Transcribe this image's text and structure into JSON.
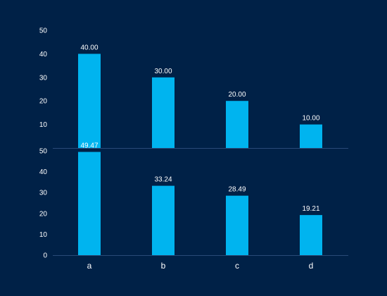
{
  "colors": {
    "background": "#002147",
    "bar": "#00b4ef",
    "axis": "#2a4a78",
    "text": "#ffffff"
  },
  "chart_data": [
    {
      "type": "bar",
      "categories": [
        "a",
        "b",
        "c",
        "d"
      ],
      "values": [
        40.0,
        30.0,
        20.0,
        10.0
      ],
      "value_labels": [
        "40.00",
        "30.00",
        "20.00",
        "10.00"
      ],
      "ylim": [
        0,
        50
      ],
      "yticks": [
        10,
        20,
        30,
        40,
        50
      ],
      "ytick_labels": [
        "10",
        "20",
        "30",
        "40",
        "50"
      ],
      "grid": false
    },
    {
      "type": "bar",
      "categories": [
        "a",
        "b",
        "c",
        "d"
      ],
      "values": [
        49.47,
        33.24,
        28.49,
        19.21
      ],
      "value_labels": [
        "49.47",
        "33.24",
        "28.49",
        "19.21"
      ],
      "ylim": [
        0,
        50
      ],
      "yticks": [
        0,
        10,
        20,
        30,
        40,
        50
      ],
      "ytick_labels": [
        "0",
        "10",
        "20",
        "30",
        "40",
        "50"
      ],
      "xtick_labels": [
        "a",
        "b",
        "c",
        "d"
      ],
      "grid": false
    }
  ]
}
